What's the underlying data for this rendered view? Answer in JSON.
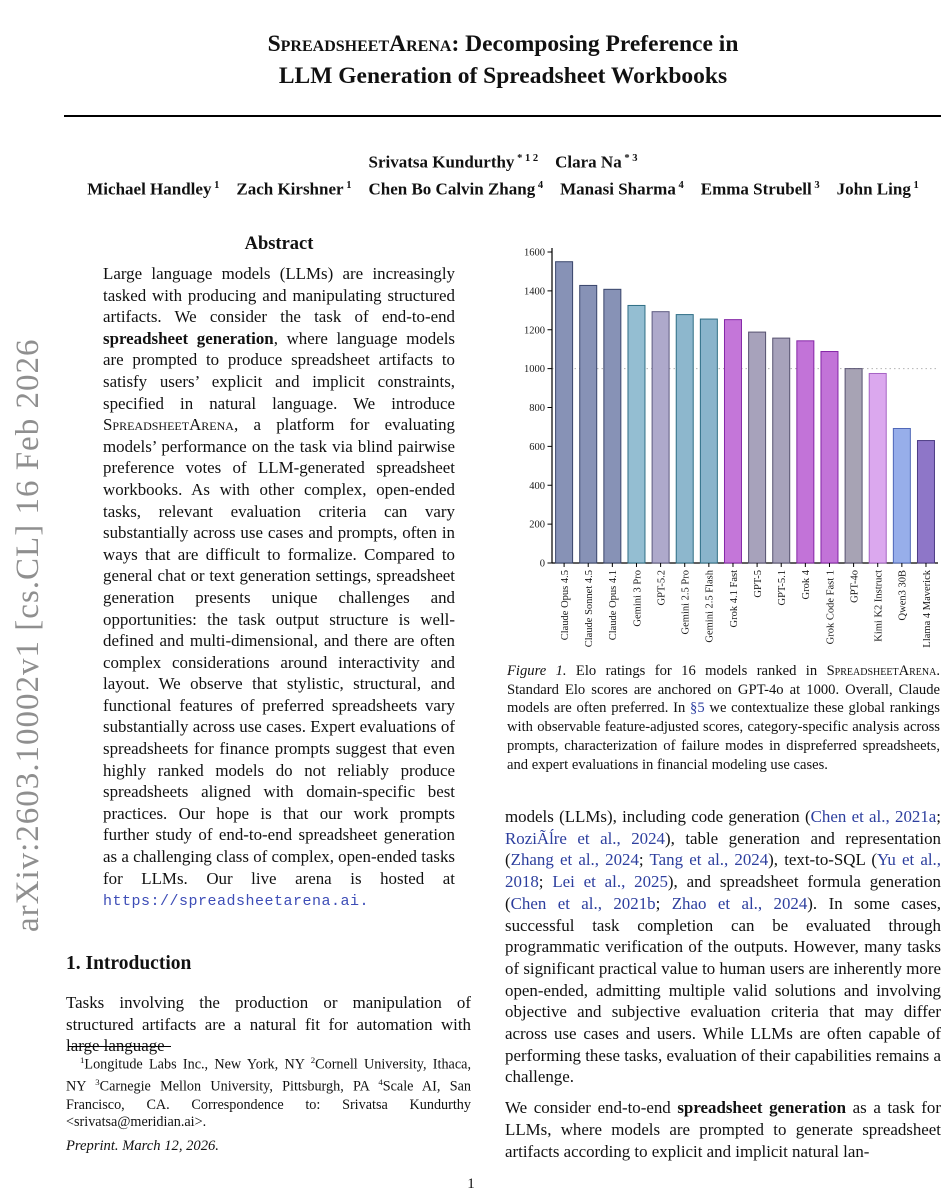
{
  "arxiv_watermark": "arXiv:2603.10002v1  [cs.CL]  16 Feb 2026",
  "title": {
    "line1_segments": [
      {
        "t": "SpreadsheetArena",
        "style": "smallcaps"
      },
      {
        "t": ": Decomposing Preference in"
      }
    ],
    "line2": "LLM Generation of Spreadsheet Workbooks"
  },
  "authors": {
    "line1_segments": [
      {
        "t": "Srivatsa Kundurthy"
      },
      {
        "t": " * 1 2",
        "style": "sup"
      },
      {
        "t": "  "
      },
      {
        "t": "Clara Na"
      },
      {
        "t": " * 3",
        "style": "sup"
      }
    ],
    "line2_segments": [
      {
        "t": "Michael Handley"
      },
      {
        "t": " 1",
        "style": "sup"
      },
      {
        "t": "  "
      },
      {
        "t": "Zach Kirshner"
      },
      {
        "t": " 1",
        "style": "sup"
      },
      {
        "t": "  "
      },
      {
        "t": "Chen Bo Calvin Zhang"
      },
      {
        "t": " 4",
        "style": "sup"
      },
      {
        "t": "  "
      },
      {
        "t": "Manasi Sharma"
      },
      {
        "t": " 4",
        "style": "sup"
      },
      {
        "t": "  "
      },
      {
        "t": "Emma Strubell"
      },
      {
        "t": " 3",
        "style": "sup"
      },
      {
        "t": "  "
      },
      {
        "t": "John Ling"
      },
      {
        "t": " 1",
        "style": "sup"
      }
    ]
  },
  "abstract": {
    "heading": "Abstract",
    "segments": [
      {
        "t": "Large language models (LLMs) are increasingly tasked with producing and manipulating structured artifacts. We consider the task of end-to-end "
      },
      {
        "t": "spreadsheet generation",
        "style": "bold"
      },
      {
        "t": ", where language models are prompted to produce spreadsheet artifacts to satisfy users’ explicit and implicit constraints, specified in natural language.  We introduce "
      },
      {
        "t": "SpreadsheetArena",
        "style": "smallcaps"
      },
      {
        "t": ", a platform for evaluating models’ performance on the task via blind pairwise preference votes of LLM-generated spreadsheet workbooks. As with other complex, open-ended tasks, relevant evaluation criteria can vary substantially across use cases and prompts, often in ways that are difficult to formalize. Compared to general chat or text generation settings, spreadsheet generation presents unique challenges and opportunities: the task output structure is well-defined and multi-dimensional, and there are often complex considerations around interactivity and layout. We observe that stylistic, structural, and functional features of preferred spreadsheets vary substantially across use cases. Expert evaluations of spreadsheets for finance prompts suggest that even highly ranked models do not reliably produce spreadsheets aligned with domain-specific best practices. Our hope is that our work prompts further study of end-to-end spreadsheet generation as a challenging class of complex, open-ended tasks for LLMs. Our live arena is hosted at "
      },
      {
        "t": "https://spreadsheetarena.ai.",
        "style": "monolink",
        "name": "arena-url-link"
      }
    ]
  },
  "introduction": {
    "heading": "1. Introduction",
    "text": "Tasks involving the production or manipulation of structured artifacts are a natural fit for automation with large language"
  },
  "footnote": {
    "segments": [
      {
        "t": "1",
        "style": "sup"
      },
      {
        "t": "Longitude Labs Inc., New York, NY "
      },
      {
        "t": "2",
        "style": "sup"
      },
      {
        "t": "Cornell University, Ithaca, NY "
      },
      {
        "t": "3",
        "style": "sup"
      },
      {
        "t": "Carnegie Mellon University, Pittsburgh, PA "
      },
      {
        "t": "4",
        "style": "sup"
      },
      {
        "t": "Scale AI, San Francisco, CA. Correspondence to: Srivatsa Kundurthy <srivatsa@meridian.ai>."
      }
    ]
  },
  "preprint_note": "Preprint. March 12, 2026.",
  "page_number": "1",
  "figure": {
    "caption_segments": [
      {
        "t": "Figure 1.",
        "style": "italic"
      },
      {
        "t": "  Elo ratings for 16 models ranked in "
      },
      {
        "t": "SpreadsheetArena",
        "style": "smallcaps"
      },
      {
        "t": ". Standard Elo scores are anchored on GPT-4o at 1000. Overall, Claude models are often preferred. In "
      },
      {
        "t": "§5",
        "style": "link",
        "name": "section-5-link"
      },
      {
        "t": " we contextualize these global rankings with observable feature-adjusted scores, category-specific analysis across prompts, characterization of failure modes in dispreferred spreadsheets, and expert evaluations in financial modeling use cases."
      }
    ]
  },
  "chart_data": {
    "type": "bar",
    "title": "",
    "xlabel": "",
    "ylabel": "",
    "ylim": [
      0,
      1600
    ],
    "yticks": [
      0,
      200,
      400,
      600,
      800,
      1000,
      1200,
      1400,
      1600
    ],
    "reference_line": 1000,
    "grid": false,
    "legend": "none",
    "categories": [
      "Claude Opus 4.5",
      "Claude Sonnet 4.5",
      "Claude Opus 4.1",
      "Gemini 3 Pro",
      "GPT-5.2",
      "Gemini 2.5 Pro",
      "Gemini 2.5 Flash",
      "Grok 4.1 Fast",
      "GPT-5",
      "GPT-5.1",
      "Grok 4",
      "Grok Code Fast 1",
      "GPT-4o",
      "Kimi K2 Instruct",
      "Qwen3 30B",
      "Llama 4 Maverick"
    ],
    "values": [
      1550,
      1428,
      1408,
      1325,
      1293,
      1278,
      1255,
      1252,
      1188,
      1157,
      1143,
      1088,
      1000,
      975,
      692,
      630
    ],
    "bar_colors": [
      "#8792b6",
      "#8792b6",
      "#8792b6",
      "#94bed2",
      "#aea9cb",
      "#8db7cd",
      "#8ab4cb",
      "#c476d9",
      "#a7a2bb",
      "#a7a2bb",
      "#c273d8",
      "#c273d8",
      "#a7a3b4",
      "#dba8ee",
      "#97aeea",
      "#8e76c8"
    ],
    "bar_edge_colors": [
      "#39456b",
      "#39456b",
      "#39456b",
      "#2f6e85",
      "#5d5a80",
      "#2f6e85",
      "#2f6e85",
      "#8426a6",
      "#575270",
      "#575270",
      "#8426a6",
      "#8426a6",
      "#575270",
      "#a663c4",
      "#4f68b8",
      "#4d3c85"
    ]
  },
  "body": {
    "paragraphs": [
      {
        "segments": [
          {
            "t": "models (LLMs), including code generation ("
          },
          {
            "t": "Chen et al., 2021a",
            "style": "link",
            "name": "citation-link"
          },
          {
            "t": "; "
          },
          {
            "t": "RoziÃĺre et al., 2024",
            "style": "link",
            "name": "citation-link"
          },
          {
            "t": "), table generation and representation ("
          },
          {
            "t": "Zhang et al., 2024",
            "style": "link",
            "name": "citation-link"
          },
          {
            "t": "; "
          },
          {
            "t": "Tang et al., 2024",
            "style": "link",
            "name": "citation-link"
          },
          {
            "t": "), text-to-SQL ("
          },
          {
            "t": "Yu et al., 2018",
            "style": "link",
            "name": "citation-link"
          },
          {
            "t": "; "
          },
          {
            "t": "Lei et al., 2025",
            "style": "link",
            "name": "citation-link"
          },
          {
            "t": "), and spreadsheet formula generation ("
          },
          {
            "t": "Chen et al., 2021b",
            "style": "link",
            "name": "citation-link"
          },
          {
            "t": "; "
          },
          {
            "t": "Zhao et al., 2024",
            "style": "link",
            "name": "citation-link"
          },
          {
            "t": "). In some cases, successful task completion can be evaluated through programmatic verification of the outputs.  However, many tasks of significant practical value to human users are inherently more open-ended, admitting multiple valid solutions and involving objective and subjective evaluation criteria that may differ across use cases and users. While LLMs are often capable of performing these tasks, evaluation of their capabilities remains a challenge."
          }
        ]
      },
      {
        "segments": [
          {
            "t": "We consider end-to-end "
          },
          {
            "t": "spreadsheet generation",
            "style": "bold"
          },
          {
            "t": " as a task for LLMs, where models are prompted to generate spreadsheet artifacts according to explicit and implicit natural lan-"
          }
        ]
      }
    ]
  },
  "colors": {
    "link": "#2c3e9e",
    "mono_link": "#3d4db7",
    "watermark_gray": "#8f8f8f",
    "reference_line_gray": "#b3b3b3",
    "axis_black": "#000000"
  }
}
